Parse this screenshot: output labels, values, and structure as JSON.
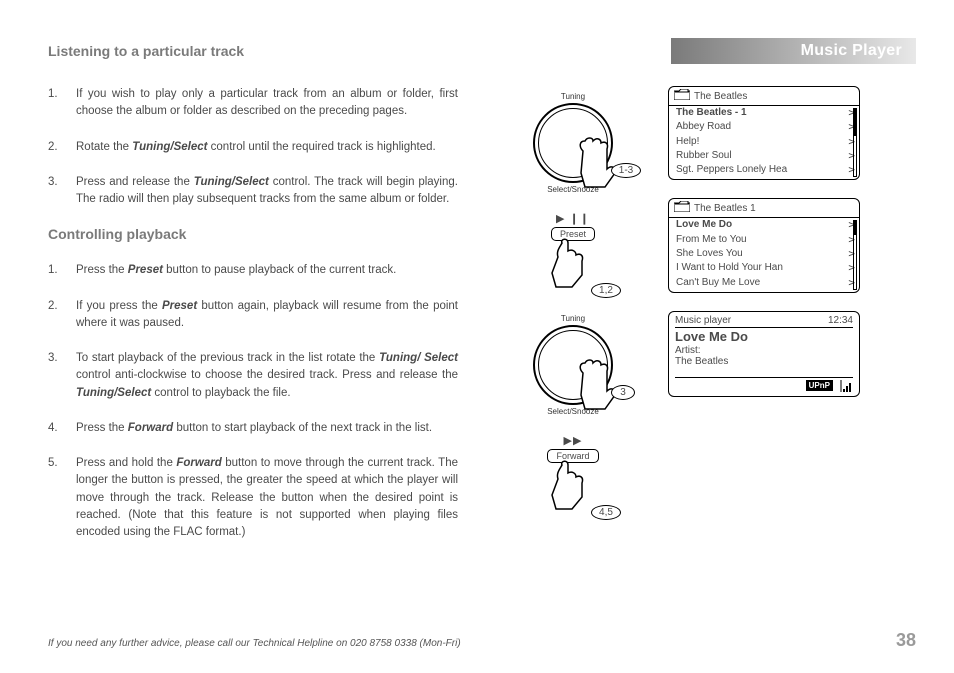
{
  "header": {
    "section": "Listening to a particular track",
    "tab": "Music Player"
  },
  "listening": {
    "items": [
      {
        "pre": "If you wish to play only a particular track from an album or folder, first choose the album or folder as described on the preceding pages."
      },
      {
        "pre": "Rotate the ",
        "ctrl": "Tuning/Select",
        "post": " control until the required track is highlighted."
      },
      {
        "pre": "Press and release the ",
        "ctrl": "Tuning/Select",
        "post": " control. The track will begin playing. The radio will then play subsequent tracks from the same album or folder."
      }
    ]
  },
  "playback": {
    "title": "Controlling playback",
    "items": [
      {
        "pre": "Press the ",
        "ctrl": "Preset",
        "post": " button to pause playback of the current track."
      },
      {
        "pre": "If you press the ",
        "ctrl": "Preset",
        "post": " button again, playback will resume from the point where it was paused."
      },
      {
        "pre": "To start playback of the previous track in the list rotate the ",
        "ctrl": "Tuning/ Select",
        "post": " control anti-clockwise to choose the desired track. Press and release the ",
        "ctrl2": "Tuning/Select",
        "post2": " control to playback the file."
      },
      {
        "pre": "Press the ",
        "ctrl": "Forward",
        "post": " button to start playback of the next track in the list."
      },
      {
        "pre": "Press and hold the ",
        "ctrl": "Forward",
        "post": "  button to move through the current track. The longer the button is pressed, the greater the speed at which the player will move through the track. Release the button when the desired point is reached. (Note that this feature is not supported when playing files encoded using the FLAC format.)"
      }
    ]
  },
  "diagrams": {
    "dial_top_label": "Tuning",
    "dial_bottom_label": "Select/Snooze",
    "d1_step": "1-3",
    "preset_icon": "▶ ❙❙",
    "preset_label": "Preset",
    "preset_step": "1,2",
    "d2_step": "3",
    "forward_icon": "▶▶",
    "forward_label": "Forward",
    "forward_step": "4,5"
  },
  "screens": {
    "albums": {
      "header": "The Beatles",
      "rows": [
        {
          "label": "The Beatles - 1",
          "sel": true
        },
        {
          "label": "Abbey Road"
        },
        {
          "label": "Help!"
        },
        {
          "label": "Rubber Soul"
        },
        {
          "label": "Sgt. Peppers Lonely Hea"
        }
      ],
      "thumb_top": 0,
      "thumb_h": 40
    },
    "tracks": {
      "header": "The Beatles 1",
      "rows": [
        {
          "label": "Love Me Do",
          "sel": true
        },
        {
          "label": "From Me to You"
        },
        {
          "label": "She Loves You"
        },
        {
          "label": "I Want to Hold Your Han"
        },
        {
          "label": "Can't Buy Me Love"
        }
      ],
      "thumb_top": 0,
      "thumb_h": 20
    },
    "nowplaying": {
      "top_left": "Music player",
      "top_right": "12:34",
      "title": "Love Me Do",
      "artist_lbl": "Artist:",
      "artist": "The Beatles",
      "badge": "UPnP"
    }
  },
  "footer": {
    "text": "If you need any further advice, please call our Technical Helpline on 020 8758 0338 (Mon-Fri)",
    "page": "38"
  }
}
